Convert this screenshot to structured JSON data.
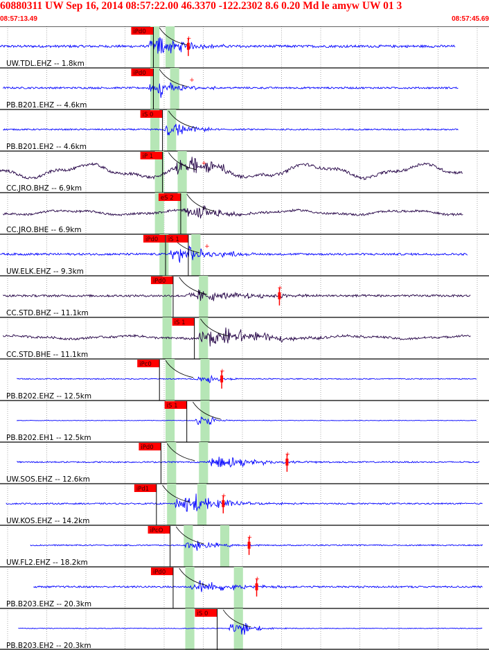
{
  "header": {
    "title": "60880311 UW Sep 16, 2014 08:57:22.00   46.3370 -122.2302  8.6 0.20 Md le amyw UW 01   3",
    "start_time": "08:57:13.49",
    "end_time": "08:57:45.69"
  },
  "colors": {
    "title": "#ff0000",
    "vertical_trace": "#0000ff",
    "broadband_trace": "#220044",
    "pick_flag": "#ff0000",
    "pick_window": "#b6e6b6",
    "travel_curve": "#000000"
  },
  "chart_data": {
    "type": "line",
    "title": "60880311 UW Sep 16, 2014 08:57:22.00   46.3370 -122.2302  8.6 0.20 Md le amyw UW 01   3",
    "x_range_seconds": [
      0,
      32.2
    ],
    "x_unit": "seconds after 08:57:13.49",
    "grid": "vertical every ~2.5 s",
    "series": [
      {
        "name": "UW.TDL.EHZ -- 1.8km",
        "station": "UW.TDL.EHZ",
        "dist": "1.8km",
        "color": "#0000ff",
        "noise": 0.07,
        "wave": 0,
        "trace_start": 0,
        "trace_end": 30.0,
        "picks": [
          {
            "label": "iPd0",
            "t": 10.1
          }
        ],
        "burst": {
          "t": 10.3,
          "amp": 0.9,
          "decay": 1.6,
          "freq": 9
        },
        "window": [
          9.9,
          10.5
        ],
        "s_window": [
          10.9,
          11.5
        ],
        "marker_t": 12.4,
        "arrow_t": 12.4
      },
      {
        "name": "PB.B201.EHZ -- 4.6km",
        "station": "PB.B201.EHZ",
        "dist": "4.6km",
        "color": "#0000ff",
        "noise": 0.05,
        "wave": 0,
        "trace_start": 0.2,
        "trace_end": 30.2,
        "picks": [
          {
            "label": "iPd0",
            "t": 10.1
          }
        ],
        "burst": {
          "t": 10.3,
          "amp": 0.7,
          "decay": 1.5,
          "freq": 9
        },
        "window": [
          9.9,
          10.5
        ],
        "s_window": [
          11.2,
          11.8
        ],
        "marker_t": 12.6,
        "arrow_t": null
      },
      {
        "name": "PB.B201.EH2 -- 4.6km",
        "station": "PB.B201.EH2",
        "dist": "4.6km",
        "color": "#0000ff",
        "noise": 0.04,
        "wave": 0,
        "trace_start": 0.2,
        "trace_end": 30.2,
        "picks": [
          {
            "label": "iS 0",
            "t": 10.7
          }
        ],
        "burst": {
          "t": 11.3,
          "amp": 0.8,
          "decay": 1.2,
          "freq": 7
        },
        "window": [
          9.9,
          10.5
        ],
        "s_window": [
          11.0,
          11.6
        ],
        "marker_t": null,
        "arrow_t": null
      },
      {
        "name": "CC.JRO.BHZ -- 6.9km",
        "station": "CC.JRO.BHZ",
        "dist": "6.9km",
        "color": "#220044",
        "noise": 0.08,
        "wave": 0.35,
        "trace_start": 0,
        "trace_end": 30.5,
        "picks": [
          {
            "label": "iP 1",
            "t": 10.7
          }
        ],
        "burst": {
          "t": 12.0,
          "amp": 0.9,
          "decay": 2.0,
          "freq": 6
        },
        "window": [
          10.2,
          10.8
        ],
        "s_window": [
          11.7,
          12.3
        ],
        "marker_t": 13.4,
        "arrow_t": null
      },
      {
        "name": "CC.JRO.BHE -- 6.9km",
        "station": "CC.JRO.BHE",
        "dist": "6.9km",
        "color": "#220044",
        "noise": 0.06,
        "wave": 0.12,
        "trace_start": 0.2,
        "trace_end": 30.5,
        "picks": [
          {
            "label": "eS 2",
            "t": 11.9
          }
        ],
        "burst": {
          "t": 12.6,
          "amp": 0.8,
          "decay": 1.6,
          "freq": 6
        },
        "window": [
          10.2,
          10.8
        ],
        "s_window": [
          11.7,
          12.3
        ],
        "marker_t": null,
        "arrow_t": null
      },
      {
        "name": "UW.ELK.EHZ -- 9.3km",
        "station": "UW.ELK.EHZ",
        "dist": "9.3km",
        "color": "#0000ff",
        "noise": 0.06,
        "wave": 0,
        "trace_start": 0,
        "trace_end": 30.8,
        "picks": [
          {
            "label": "iPd0",
            "t": 10.9
          },
          {
            "label": "iS 1",
            "t": 12.4
          }
        ],
        "burst": {
          "t": 11.6,
          "amp": 0.8,
          "decay": 2.0,
          "freq": 9
        },
        "window": [
          10.5,
          11.1
        ],
        "s_window": [
          12.6,
          13.2
        ],
        "marker_t": 13.6,
        "arrow_t": null
      },
      {
        "name": "CC.STD.BHZ -- 11.1km",
        "station": "CC.STD.BHZ",
        "dist": "11.1km",
        "color": "#220044",
        "noise": 0.06,
        "wave": 0,
        "trace_start": 0.2,
        "trace_end": 31.0,
        "picks": [
          {
            "label": "iPd0",
            "t": 11.4
          }
        ],
        "burst": {
          "t": 12.8,
          "amp": 0.45,
          "decay": 3.5,
          "freq": 8
        },
        "window": [
          10.7,
          11.3
        ],
        "s_window": [
          13.1,
          13.7
        ],
        "marker_t": 18.4,
        "arrow_t": 18.4
      },
      {
        "name": "CC.STD.BHE -- 11.1km",
        "station": "CC.STD.BHE",
        "dist": "11.1km",
        "color": "#220044",
        "noise": 0.06,
        "wave": 0.08,
        "trace_start": 0.2,
        "trace_end": 31.0,
        "picks": [
          {
            "label": "iS 1",
            "t": 12.8
          }
        ],
        "burst": {
          "t": 13.5,
          "amp": 0.85,
          "decay": 3.0,
          "freq": 7
        },
        "window": [
          10.7,
          11.3
        ],
        "s_window": [
          13.1,
          13.7
        ],
        "marker_t": null,
        "arrow_t": null
      },
      {
        "name": "PB.B202.EHZ -- 12.5km",
        "station": "PB.B202.EHZ",
        "dist": "12.5km",
        "color": "#0000ff",
        "noise": 0.03,
        "wave": 0,
        "trace_start": 1.1,
        "trace_end": 31.4,
        "picks": [
          {
            "label": "iPc0",
            "t": 10.5
          }
        ],
        "burst": {
          "t": 13.4,
          "amp": 0.35,
          "decay": 1.0,
          "freq": 8
        },
        "window": [
          10.9,
          11.5
        ],
        "s_window": [
          13.2,
          13.8
        ],
        "marker_t": 14.6,
        "arrow_t": 14.6
      },
      {
        "name": "PB.B202.EH1 -- 12.5km",
        "station": "PB.B202.EH1",
        "dist": "12.5km",
        "color": "#0000ff",
        "noise": 0.015,
        "wave": 0,
        "trace_start": 1.1,
        "trace_end": 31.4,
        "picks": [
          {
            "label": "iS 1",
            "t": 12.3
          }
        ],
        "burst": {
          "t": 13.4,
          "amp": 0.55,
          "decay": 0.7,
          "freq": 7
        },
        "window": [
          10.9,
          11.5
        ],
        "s_window": [
          13.2,
          13.8
        ],
        "marker_t": null,
        "arrow_t": null
      },
      {
        "name": "UW.SOS.EHZ -- 12.6km",
        "station": "UW.SOS.EHZ",
        "dist": "12.6km",
        "color": "#0000ff",
        "noise": 0.04,
        "wave": 0,
        "trace_start": 1.1,
        "trace_end": 31.6,
        "picks": [
          {
            "label": "iPd0",
            "t": 10.6
          }
        ],
        "burst": {
          "t": 14.3,
          "amp": 0.6,
          "decay": 2.2,
          "freq": 9
        },
        "window": [
          11.0,
          11.6
        ],
        "s_window": [
          13.1,
          13.7
        ],
        "marker_t": 18.9,
        "arrow_t": 18.9
      },
      {
        "name": "UW.KOS.EHZ -- 14.2km",
        "station": "UW.KOS.EHZ",
        "dist": "14.2km",
        "color": "#0000ff",
        "noise": 0.04,
        "wave": 0,
        "trace_start": 0.4,
        "trace_end": 31.8,
        "picks": [
          {
            "label": "iPd1",
            "t": 10.3
          }
        ],
        "burst": {
          "t": 12.0,
          "amp": 0.9,
          "decay": 2.2,
          "freq": 9
        },
        "window": [
          11.0,
          11.6
        ],
        "s_window": [
          13.0,
          13.6
        ],
        "marker_t": 14.7,
        "arrow_t": 14.7
      },
      {
        "name": "UW.FL2.EHZ -- 18.2km",
        "station": "UW.FL2.EHZ",
        "dist": "18.2km",
        "color": "#0000ff",
        "noise": 0.035,
        "wave": 0,
        "trace_start": 2.0,
        "trace_end": 31.8,
        "picks": [
          {
            "label": "iPcO",
            "t": 11.2
          }
        ],
        "burst": {
          "t": 12.7,
          "amp": 0.45,
          "decay": 1.6,
          "freq": 9
        },
        "window": [
          12.1,
          12.7
        ],
        "s_window": [
          14.5,
          15.1
        ],
        "marker_t": 16.4,
        "arrow_t": 16.4
      },
      {
        "name": "PB.B203.EHZ -- 20.3km",
        "station": "PB.B203.EHZ",
        "dist": "20.3km",
        "color": "#0000ff",
        "noise": 0.05,
        "wave": 0,
        "trace_start": 2.2,
        "trace_end": 31.8,
        "picks": [
          {
            "label": "iPd0",
            "t": 11.4
          }
        ],
        "burst": {
          "t": 13.0,
          "amp": 0.5,
          "decay": 2.2,
          "freq": 9
        },
        "window": [
          12.2,
          12.8
        ],
        "s_window": [
          15.4,
          16.0
        ],
        "marker_t": 16.9,
        "arrow_t": 16.9
      },
      {
        "name": "PB.B203.EH2 -- 20.3km",
        "station": "PB.B203.EH2",
        "dist": "20.3km",
        "color": "#0000ff",
        "noise": 0.02,
        "wave": 0,
        "trace_start": 1.2,
        "trace_end": 31.8,
        "picks": [
          {
            "label": "iS 0",
            "t": 14.3
          }
        ],
        "burst": {
          "t": 15.6,
          "amp": 0.75,
          "decay": 0.9,
          "freq": 7
        },
        "window": [
          12.2,
          12.8
        ],
        "s_window": [
          15.4,
          16.0
        ],
        "marker_t": null,
        "arrow_t": null
      }
    ]
  }
}
